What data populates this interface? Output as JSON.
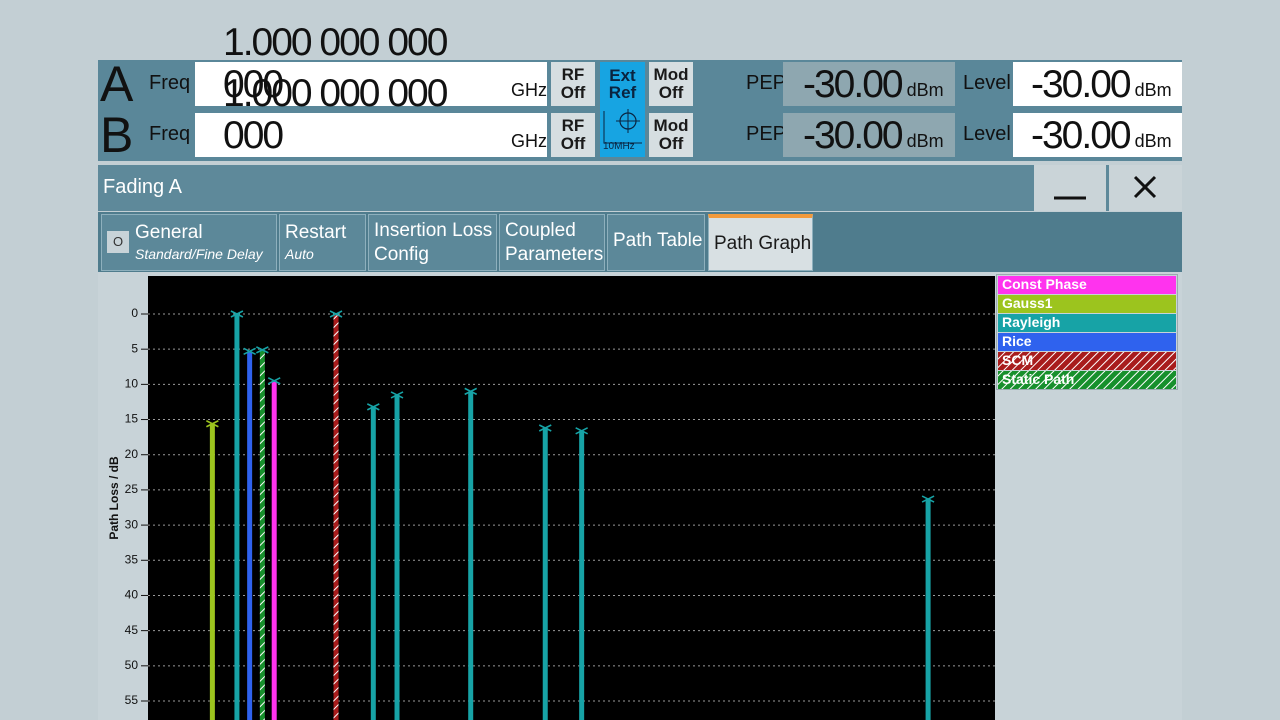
{
  "header": {
    "channels": [
      {
        "name": "A",
        "freq_label": "Freq",
        "freq_value": "1.000 000 000 000",
        "freq_unit": "GHz",
        "rf": "RF",
        "rf_state": "Off",
        "mod": "Mod",
        "mod_state": "Off",
        "pep_label": "PEP",
        "pep_value": "-30.00",
        "pep_unit": "dBm",
        "level_label": "Level",
        "level_value": "-30.00",
        "level_unit": "dBm"
      },
      {
        "name": "B",
        "freq_label": "Freq",
        "freq_value": "1.000 000 000 000",
        "freq_unit": "GHz",
        "rf": "RF",
        "rf_state": "Off",
        "mod": "Mod",
        "mod_state": "Off",
        "pep_label": "PEP",
        "pep_value": "-30.00",
        "pep_unit": "dBm",
        "level_label": "Level",
        "level_value": "-30.00",
        "level_unit": "dBm"
      }
    ],
    "ext_ref": [
      "Ext",
      "Ref"
    ],
    "ref_freq": "10MHz"
  },
  "window": {
    "title": "Fading A",
    "tabs": [
      {
        "title": [
          "General"
        ],
        "subtitle": "Standard/Fine Delay",
        "icon": "O"
      },
      {
        "title": [
          "Restart"
        ],
        "subtitle": "Auto"
      },
      {
        "title": [
          "Insertion Loss",
          "Config"
        ]
      },
      {
        "title": [
          "Coupled",
          "Parameters"
        ]
      },
      {
        "title": [
          "Path Table"
        ]
      },
      {
        "title": [
          "Path Graph"
        ],
        "selected": true
      }
    ]
  },
  "chart_data": {
    "type": "bar",
    "y_label": "Path Loss / dB",
    "ylim": [
      -5.4,
      57.7
    ],
    "yticks": [
      0,
      5,
      10,
      15,
      20,
      25,
      30,
      35,
      40,
      45,
      50,
      55
    ],
    "xlim": [
      0,
      100
    ],
    "grid": true,
    "legend": "top-right",
    "series": [
      {
        "name": "Const Phase",
        "color": "#ff33ee",
        "x": [
          14.9
        ],
        "values": [
          9.5
        ]
      },
      {
        "name": "Gauss1",
        "color": "#9cc41e",
        "x": [
          7.6
        ],
        "values": [
          15.6
        ]
      },
      {
        "name": "Rayleigh",
        "color": "#17a3a6",
        "x": [
          10.5,
          26.6,
          29.4,
          38.1,
          46.9,
          51.2,
          92.1
        ],
        "values": [
          0,
          13.2,
          11.5,
          11,
          16.2,
          16.6,
          26.3
        ]
      },
      {
        "name": "Rice",
        "color": "#2f62ee",
        "x": [
          12.0
        ],
        "values": [
          5.3
        ]
      },
      {
        "name": "SCM",
        "color": "#a81c1c",
        "hatch": true,
        "x": [
          22.2
        ],
        "values": [
          0
        ]
      },
      {
        "name": "Static Path",
        "color": "#17902c",
        "hatch": true,
        "x": [
          13.5
        ],
        "values": [
          5.1
        ]
      }
    ]
  }
}
